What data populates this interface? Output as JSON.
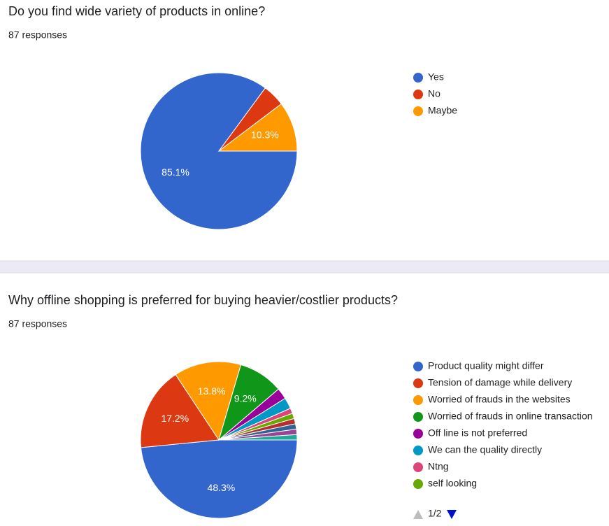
{
  "chart_data": [
    {
      "type": "pie",
      "title": "Do you find wide variety of products in online?",
      "subtitle": "87 responses",
      "categories": [
        "Yes",
        "No",
        "Maybe"
      ],
      "values": [
        85.1,
        4.6,
        10.3
      ],
      "value_labels": [
        "85.1%",
        null,
        "10.3%"
      ],
      "colors": [
        "#3366cc",
        "#dc3912",
        "#ff9900"
      ]
    },
    {
      "type": "pie",
      "title": "Why offline shopping is preferred for buying heavier/costlier products?",
      "subtitle": "87 responses",
      "categories": [
        "Product quality might differ",
        "Tension of damage while delivery",
        "Worried of frauds in the websites",
        "Worried of frauds in online transaction",
        "Off line is not preferred",
        "We can the quality directly",
        "Ntng",
        "self looking",
        null,
        null,
        null,
        null
      ],
      "values": [
        48.3,
        17.2,
        13.8,
        9.2,
        2.3,
        2.3,
        1.1,
        1.1,
        1.1,
        1.1,
        1.1,
        1.1
      ],
      "value_labels": [
        "48.3%",
        "17.2%",
        "13.8%",
        "9.2%",
        null,
        null,
        null,
        null,
        null,
        null,
        null,
        null
      ],
      "colors": [
        "#3366cc",
        "#dc3912",
        "#ff9900",
        "#109618",
        "#990099",
        "#0099c6",
        "#dd4477",
        "#66aa00",
        "#b82e2e",
        "#316395",
        "#994499",
        "#22aa99"
      ],
      "legend_page": "1/2"
    }
  ]
}
